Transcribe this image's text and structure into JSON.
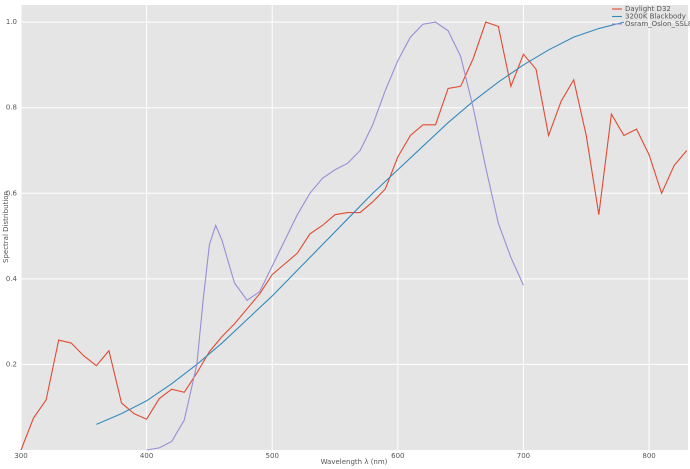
{
  "chart_data": {
    "type": "line",
    "xlabel": "Wavelength λ (nm)",
    "ylabel": "Spectral Distribution",
    "xlim": [
      300,
      831
    ],
    "ylim": [
      0,
      1.04
    ],
    "xticks": [
      300,
      400,
      500,
      600,
      700,
      800
    ],
    "yticks": [
      0.2,
      0.4,
      0.6,
      0.8,
      {
        "value": 1.0,
        "label": "1.0"
      }
    ],
    "grid": true,
    "legend": "upper right",
    "series": [
      {
        "name": "Daylight D32",
        "color": "#E24A33",
        "x": [
          300,
          310,
          320,
          330,
          340,
          350,
          360,
          370,
          380,
          390,
          400,
          410,
          420,
          430,
          440,
          450,
          460,
          470,
          480,
          490,
          500,
          510,
          520,
          530,
          540,
          550,
          560,
          570,
          580,
          590,
          600,
          610,
          620,
          630,
          640,
          650,
          660,
          670,
          680,
          690,
          700,
          710,
          720,
          730,
          740,
          750,
          760,
          770,
          780,
          790,
          800,
          810,
          820,
          830
        ],
        "values": [
          0.0,
          0.075,
          0.117,
          0.257,
          0.25,
          0.22,
          0.197,
          0.232,
          0.11,
          0.085,
          0.072,
          0.12,
          0.142,
          0.135,
          0.18,
          0.23,
          0.265,
          0.295,
          0.33,
          0.365,
          0.41,
          0.435,
          0.46,
          0.505,
          0.525,
          0.55,
          0.555,
          0.555,
          0.58,
          0.61,
          0.685,
          0.735,
          0.76,
          0.76,
          0.845,
          0.85,
          0.915,
          1.0,
          0.99,
          0.85,
          0.925,
          0.89,
          0.735,
          0.815,
          0.865,
          0.735,
          0.55,
          0.785,
          0.735,
          0.75,
          0.69,
          0.6,
          0.665,
          0.7
        ]
      },
      {
        "name": "3200K Blackbody",
        "color": "#348ABD",
        "x": [
          360,
          380,
          400,
          420,
          440,
          460,
          480,
          500,
          520,
          540,
          560,
          580,
          600,
          620,
          640,
          660,
          680,
          700,
          720,
          740,
          760,
          780
        ],
        "values": [
          0.06,
          0.085,
          0.115,
          0.155,
          0.2,
          0.25,
          0.305,
          0.36,
          0.42,
          0.48,
          0.54,
          0.6,
          0.655,
          0.71,
          0.765,
          0.815,
          0.86,
          0.9,
          0.935,
          0.965,
          0.985,
          1.0
        ]
      },
      {
        "name": "Osram_Oslon_SSL80",
        "color": "#988ED5",
        "x": [
          400,
          410,
          420,
          430,
          440,
          445,
          450,
          455,
          460,
          470,
          480,
          490,
          500,
          510,
          520,
          530,
          540,
          550,
          560,
          570,
          580,
          590,
          600,
          610,
          620,
          630,
          640,
          650,
          660,
          670,
          680,
          690,
          700
        ],
        "values": [
          0.0,
          0.005,
          0.02,
          0.07,
          0.2,
          0.35,
          0.48,
          0.525,
          0.49,
          0.39,
          0.35,
          0.37,
          0.43,
          0.49,
          0.55,
          0.6,
          0.635,
          0.655,
          0.67,
          0.7,
          0.76,
          0.84,
          0.91,
          0.965,
          0.995,
          1.0,
          0.98,
          0.92,
          0.8,
          0.66,
          0.53,
          0.45,
          0.385
        ]
      }
    ]
  }
}
